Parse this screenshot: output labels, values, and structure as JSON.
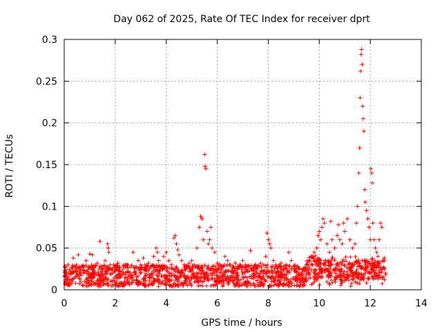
{
  "colors": {
    "series": "#ff0000",
    "grid": "#a0a0a0",
    "axis": "#000000"
  },
  "chart_data": {
    "type": "scatter",
    "title": "Day 062 of 2025, Rate Of TEC Index for receiver dprt",
    "xlabel": "GPS time / hours",
    "ylabel": "ROTI / TECUs",
    "xlim": [
      0,
      14
    ],
    "ylim": [
      0,
      0.3
    ],
    "x_ticks": [
      0,
      2,
      4,
      6,
      8,
      10,
      12,
      14
    ],
    "x_tick_labels": [
      "0",
      "2",
      "4",
      "6",
      "8",
      "10",
      "12",
      "14"
    ],
    "y_ticks": [
      0,
      0.05,
      0.1,
      0.15,
      0.2,
      0.25,
      0.3
    ],
    "y_tick_labels": [
      "0",
      "0.05",
      "0.1",
      "0.15",
      "0.2",
      "0.25",
      "0.3"
    ],
    "grid": true,
    "marker": "+",
    "series": [
      {
        "name": "ROTI",
        "note": "dense baseline 0-0.03 TECU from 0 to ~12.6 h with bursts; representative sampled points",
        "points": [
          [
            0.05,
            0.012
          ],
          [
            0.15,
            0.03
          ],
          [
            0.25,
            0.022
          ],
          [
            0.35,
            0.038
          ],
          [
            0.45,
            0.015
          ],
          [
            0.55,
            0.042
          ],
          [
            0.65,
            0.02
          ],
          [
            0.75,
            0.028
          ],
          [
            0.85,
            0.035
          ],
          [
            0.95,
            0.018
          ],
          [
            1.0,
            0.043
          ],
          [
            1.05,
            0.025
          ],
          [
            1.1,
            0.042
          ],
          [
            1.2,
            0.02
          ],
          [
            1.3,
            0.032
          ],
          [
            1.4,
            0.058
          ],
          [
            1.5,
            0.024
          ],
          [
            1.6,
            0.035
          ],
          [
            1.7,
            0.055
          ],
          [
            1.72,
            0.05
          ],
          [
            1.75,
            0.045
          ],
          [
            1.8,
            0.03
          ],
          [
            1.9,
            0.02
          ],
          [
            2.0,
            0.028
          ],
          [
            2.1,
            0.032
          ],
          [
            2.2,
            0.018
          ],
          [
            2.3,
            0.025
          ],
          [
            2.4,
            0.03
          ],
          [
            2.5,
            0.022
          ],
          [
            2.6,
            0.027
          ],
          [
            2.7,
            0.045
          ],
          [
            2.8,
            0.02
          ],
          [
            2.9,
            0.035
          ],
          [
            3.0,
            0.03
          ],
          [
            3.1,
            0.038
          ],
          [
            3.2,
            0.025
          ],
          [
            3.3,
            0.032
          ],
          [
            3.4,
            0.028
          ],
          [
            3.5,
            0.04
          ],
          [
            3.6,
            0.05
          ],
          [
            3.65,
            0.045
          ],
          [
            3.7,
            0.035
          ],
          [
            3.8,
            0.028
          ],
          [
            3.9,
            0.04
          ],
          [
            4.0,
            0.045
          ],
          [
            4.1,
            0.035
          ],
          [
            4.2,
            0.03
          ],
          [
            4.3,
            0.062
          ],
          [
            4.35,
            0.065
          ],
          [
            4.4,
            0.055
          ],
          [
            4.45,
            0.048
          ],
          [
            4.5,
            0.042
          ],
          [
            4.6,
            0.035
          ],
          [
            4.7,
            0.03
          ],
          [
            4.8,
            0.028
          ],
          [
            4.9,
            0.032
          ],
          [
            5.0,
            0.035
          ],
          [
            5.1,
            0.03
          ],
          [
            5.2,
            0.05
          ],
          [
            5.3,
            0.075
          ],
          [
            5.35,
            0.088
          ],
          [
            5.4,
            0.085
          ],
          [
            5.45,
            0.06
          ],
          [
            5.5,
            0.162
          ],
          [
            5.52,
            0.148
          ],
          [
            5.55,
            0.145
          ],
          [
            5.6,
            0.07
          ],
          [
            5.65,
            0.055
          ],
          [
            5.7,
            0.06
          ],
          [
            5.75,
            0.075
          ],
          [
            5.8,
            0.05
          ],
          [
            5.9,
            0.045
          ],
          [
            6.0,
            0.032
          ],
          [
            6.1,
            0.03
          ],
          [
            6.2,
            0.028
          ],
          [
            6.3,
            0.04
          ],
          [
            6.4,
            0.035
          ],
          [
            6.5,
            0.03
          ],
          [
            6.6,
            0.028
          ],
          [
            6.7,
            0.032
          ],
          [
            6.8,
            0.025
          ],
          [
            6.9,
            0.03
          ],
          [
            7.0,
            0.035
          ],
          [
            7.1,
            0.03
          ],
          [
            7.2,
            0.028
          ],
          [
            7.3,
            0.047
          ],
          [
            7.4,
            0.025
          ],
          [
            7.5,
            0.03
          ],
          [
            7.6,
            0.028
          ],
          [
            7.7,
            0.032
          ],
          [
            7.8,
            0.03
          ],
          [
            7.9,
            0.04
          ],
          [
            7.95,
            0.068
          ],
          [
            8.0,
            0.06
          ],
          [
            8.05,
            0.055
          ],
          [
            8.1,
            0.05
          ],
          [
            8.2,
            0.035
          ],
          [
            8.3,
            0.03
          ],
          [
            8.4,
            0.028
          ],
          [
            8.5,
            0.032
          ],
          [
            8.6,
            0.025
          ],
          [
            8.7,
            0.03
          ],
          [
            8.8,
            0.045
          ],
          [
            8.9,
            0.035
          ],
          [
            9.0,
            0.028
          ],
          [
            9.1,
            0.022
          ],
          [
            9.2,
            0.018
          ],
          [
            9.3,
            0.02
          ],
          [
            9.4,
            0.025
          ],
          [
            9.5,
            0.03
          ],
          [
            9.6,
            0.035
          ],
          [
            9.7,
            0.04
          ],
          [
            9.8,
            0.045
          ],
          [
            9.9,
            0.05
          ],
          [
            9.95,
            0.065
          ],
          [
            10.0,
            0.07
          ],
          [
            10.05,
            0.06
          ],
          [
            10.1,
            0.075
          ],
          [
            10.15,
            0.085
          ],
          [
            10.2,
            0.08
          ],
          [
            10.3,
            0.055
          ],
          [
            10.4,
            0.045
          ],
          [
            10.45,
            0.082
          ],
          [
            10.5,
            0.06
          ],
          [
            10.6,
            0.05
          ],
          [
            10.7,
            0.065
          ],
          [
            10.75,
            0.078
          ],
          [
            10.8,
            0.06
          ],
          [
            10.9,
            0.055
          ],
          [
            10.95,
            0.08
          ],
          [
            11.0,
            0.07
          ],
          [
            11.1,
            0.085
          ],
          [
            11.2,
            0.06
          ],
          [
            11.3,
            0.05
          ],
          [
            11.4,
            0.055
          ],
          [
            11.45,
            0.08
          ],
          [
            11.5,
            0.1
          ],
          [
            11.55,
            0.14
          ],
          [
            11.58,
            0.17
          ],
          [
            11.6,
            0.23
          ],
          [
            11.62,
            0.262
          ],
          [
            11.64,
            0.282
          ],
          [
            11.66,
            0.288
          ],
          [
            11.68,
            0.27
          ],
          [
            11.7,
            0.22
          ],
          [
            11.72,
            0.205
          ],
          [
            11.75,
            0.19
          ],
          [
            11.78,
            0.12
          ],
          [
            11.8,
            0.105
          ],
          [
            11.85,
            0.095
          ],
          [
            11.9,
            0.085
          ],
          [
            11.95,
            0.075
          ],
          [
            12.0,
            0.06
          ],
          [
            12.02,
            0.145
          ],
          [
            12.05,
            0.14
          ],
          [
            12.08,
            0.128
          ],
          [
            12.1,
            0.08
          ],
          [
            12.15,
            0.06
          ],
          [
            12.2,
            0.05
          ],
          [
            12.25,
            0.045
          ],
          [
            12.3,
            0.04
          ],
          [
            12.35,
            0.06
          ],
          [
            12.4,
            0.08
          ],
          [
            12.45,
            0.075
          ],
          [
            12.5,
            0.035
          ],
          [
            12.55,
            0.025
          ],
          [
            12.6,
            0.02
          ]
        ]
      }
    ]
  }
}
